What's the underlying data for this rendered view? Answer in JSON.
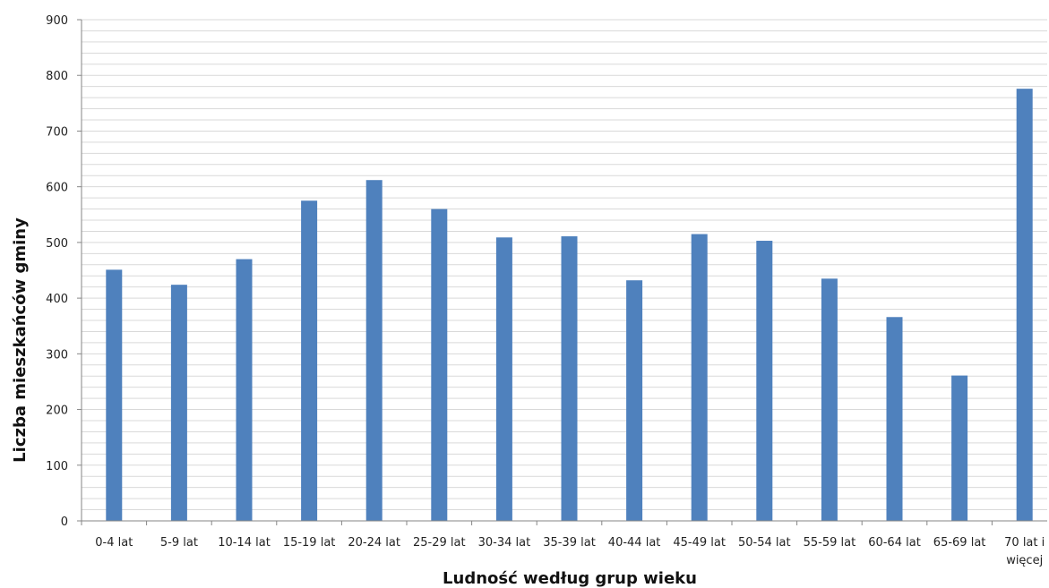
{
  "chart_data": {
    "type": "bar",
    "title": "",
    "xlabel": "Ludność według grup wieku",
    "ylabel": "Liczba mieszkańców gminy",
    "categories": [
      "0-4 lat",
      "5-9 lat",
      "10-14 lat",
      "15-19 lat",
      "20-24 lat",
      "25-29 lat",
      "30-34 lat",
      "35-39 lat",
      "40-44 lat",
      "45-49 lat",
      "50-54 lat",
      "55-59 lat",
      "60-64 lat",
      "65-69 lat",
      "70 lat i więcej"
    ],
    "category_lines": [
      [
        "0-4 lat"
      ],
      [
        "5-9 lat"
      ],
      [
        "10-14 lat"
      ],
      [
        "15-19 lat"
      ],
      [
        "20-24 lat"
      ],
      [
        "25-29 lat"
      ],
      [
        "30-34 lat"
      ],
      [
        "35-39 lat"
      ],
      [
        "40-44 lat"
      ],
      [
        "45-49 lat"
      ],
      [
        "50-54 lat"
      ],
      [
        "55-59 lat"
      ],
      [
        "60-64 lat"
      ],
      [
        "65-69 lat"
      ],
      [
        "70 lat i",
        "więcej"
      ]
    ],
    "values": [
      451,
      424,
      470,
      575,
      612,
      560,
      509,
      511,
      432,
      515,
      503,
      435,
      366,
      261,
      776
    ],
    "ylim": [
      0,
      900
    ],
    "yticks": [
      0,
      100,
      200,
      300,
      400,
      500,
      600,
      700,
      800,
      900
    ],
    "minor_grid_step": 20,
    "grid": true,
    "legend": "none",
    "bar_color": "#4f81bd",
    "grid_color": "#d9d9d9",
    "axis_color": "#868686"
  }
}
